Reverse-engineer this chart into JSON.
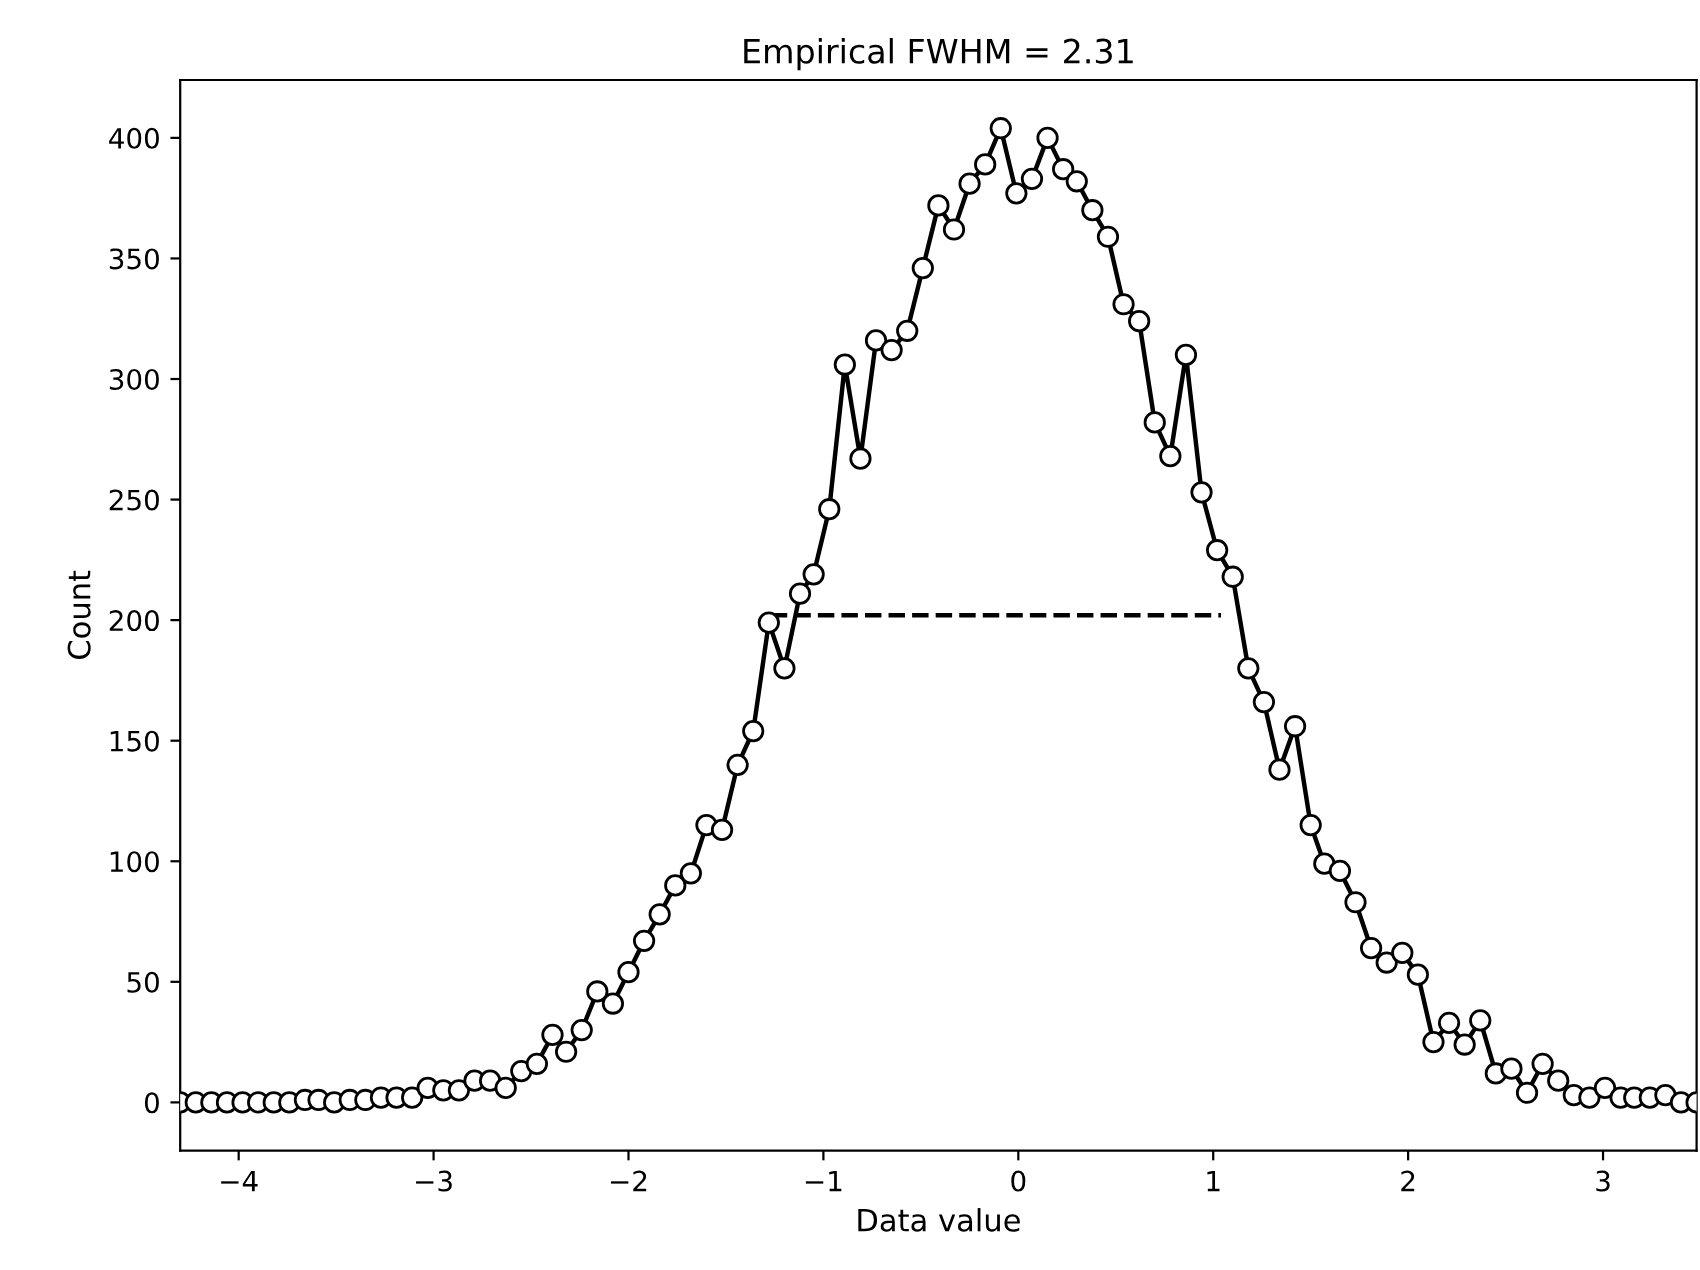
{
  "chart_data": {
    "type": "line",
    "title": "Empirical FWHM = 2.31",
    "xlabel": "Data value",
    "ylabel": "Count",
    "xlim": [
      -4.3,
      3.48
    ],
    "ylim": [
      -20,
      424
    ],
    "xticks": [
      -4,
      -3,
      -2,
      -1,
      0,
      1,
      2,
      3
    ],
    "yticks": [
      0,
      50,
      100,
      150,
      200,
      250,
      300,
      350,
      400
    ],
    "grid": false,
    "series": [
      {
        "color": "#000000",
        "marker": "circle",
        "line_style": "solid",
        "x": [
          -4.3,
          -4.22,
          -4.14,
          -4.06,
          -3.98,
          -3.9,
          -3.82,
          -3.74,
          -3.66,
          -3.59,
          -3.51,
          -3.43,
          -3.35,
          -3.27,
          -3.19,
          -3.11,
          -3.03,
          -2.95,
          -2.87,
          -2.79,
          -2.71,
          -2.63,
          -2.55,
          -2.47,
          -2.39,
          -2.32,
          -2.24,
          -2.16,
          -2.08,
          -2.0,
          -1.92,
          -1.84,
          -1.76,
          -1.68,
          -1.6,
          -1.52,
          -1.44,
          -1.36,
          -1.28,
          -1.2,
          -1.12,
          -1.05,
          -0.97,
          -0.89,
          -0.81,
          -0.73,
          -0.65,
          -0.57,
          -0.49,
          -0.41,
          -0.33,
          -0.25,
          -0.17,
          -0.09,
          -0.01,
          0.07,
          0.15,
          0.23,
          0.3,
          0.38,
          0.46,
          0.54,
          0.62,
          0.7,
          0.78,
          0.86,
          0.94,
          1.02,
          1.1,
          1.18,
          1.26,
          1.34,
          1.42,
          1.5,
          1.57,
          1.65,
          1.73,
          1.81,
          1.89,
          1.97,
          2.05,
          2.13,
          2.21,
          2.29,
          2.37,
          2.45,
          2.53,
          2.61,
          2.69,
          2.77,
          2.85,
          2.93,
          3.01,
          3.09,
          3.16,
          3.24,
          3.32,
          3.4,
          3.48
        ],
        "values": [
          0,
          0,
          0,
          0,
          0,
          0,
          0,
          0,
          1,
          1,
          0,
          1,
          1,
          2,
          2,
          2,
          6,
          5,
          5,
          9,
          9,
          6,
          13,
          16,
          28,
          21,
          30,
          46,
          41,
          54,
          67,
          78,
          90,
          95,
          115,
          113,
          140,
          154,
          199,
          180,
          211,
          219,
          246,
          306,
          267,
          316,
          312,
          320,
          346,
          372,
          362,
          381,
          389,
          404,
          377,
          383,
          400,
          387,
          382,
          370,
          359,
          331,
          324,
          282,
          268,
          310,
          253,
          229,
          218,
          180,
          166,
          138,
          156,
          115,
          99,
          96,
          83,
          64,
          58,
          62,
          53,
          25,
          33,
          24,
          34,
          12,
          14,
          4,
          16,
          9,
          3,
          2,
          6,
          2,
          2,
          2,
          3,
          0,
          0
        ]
      },
      {
        "color": "#000000",
        "marker": "none",
        "line_style": "dashed",
        "x": [
          -1.27,
          1.04
        ],
        "values": [
          202,
          202
        ]
      }
    ]
  }
}
